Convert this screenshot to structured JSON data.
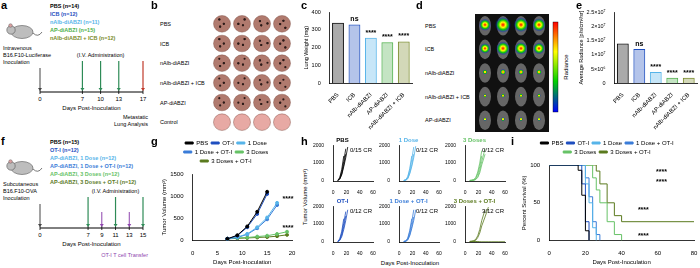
{
  "schematics": [
    {
      "panel": "a",
      "inoculation": [
        "Intravenous",
        "B16.F10-Luciferase",
        "Inoculation"
      ],
      "groups": [
        {
          "label": "PBS (n=14)",
          "color": "#000000"
        },
        {
          "label": "ICB (n=12)",
          "color": "#1f4fbf"
        },
        {
          "label": "nAlb-diABZI (n=11)",
          "color": "#56b4e9"
        },
        {
          "label": "AP-diABZI (n=15)",
          "color": "#4daf4a"
        },
        {
          "label": "nAlb-diABZI + ICB (n=12)",
          "color": "#7a8b2a"
        }
      ],
      "administration": "(I.V. Administration)",
      "days": [
        0,
        7,
        10,
        13,
        17
      ],
      "dose_days": [
        7,
        10,
        13
      ],
      "x_label": "Days Post-Inoculation",
      "endpoint": {
        "day": 17,
        "text": [
          "Metastatic",
          "Lung Analysis"
        ]
      }
    },
    {
      "panel": "f",
      "inoculation": [
        "Subcutaneous",
        "B16.F10-OVA",
        "Inoculation"
      ],
      "groups": [
        {
          "label": "PBS (n=15)",
          "color": "#000000"
        },
        {
          "label": "OT-I (n=12)",
          "color": "#1f4fbf"
        },
        {
          "label": "AP-diABZI, 1 Dose (n=12)",
          "color": "#56b4e9"
        },
        {
          "label": "AP-diABZI, 1 Dose + OT-I (n=12)",
          "color": "#3b7dd8"
        },
        {
          "label": "AP-diABZI, 3 Doses (n=12)",
          "color": "#66c266"
        },
        {
          "label": "AP-diABZI, 3 Doses + OT-I (n=12)",
          "color": "#5b7a1f"
        }
      ],
      "administration": "(I.V. Administration)",
      "days": [
        0,
        7,
        9,
        11,
        13,
        15
      ],
      "dose_days": [
        7,
        11,
        15
      ],
      "x_label": "Days Post-Inoculation",
      "transfer": {
        "days": [
          9,
          13
        ],
        "text": "OT-I T cell Transfer"
      }
    }
  ],
  "lung_photos": {
    "panel": "b",
    "rows": [
      "PBS",
      "ICB",
      "nAlb-diABZI",
      "nAlb-diABZI + ICB",
      "AP-diABZI",
      "Control"
    ]
  },
  "imaging": {
    "panel": "d",
    "rows": [
      "PBS",
      "ICB",
      "nAlb-diABZI",
      "nAlb-diABZI + ICB",
      "AP-diABZI"
    ],
    "colorbar_label": "Radiance"
  },
  "tumor_growth_panel": {
    "panel": "h",
    "x_label": "Days Post-Inoculation",
    "y_label": "Tumor Volume (mm³)"
  },
  "chart_data": [
    {
      "panel": "c",
      "type": "bar",
      "y_label": "Lung Weight (mg)",
      "categories": [
        "PBS",
        "ICB",
        "nAlb-diABZI",
        "AP-diABZI",
        "nAlb-diABZI + ICB"
      ],
      "values": [
        340,
        330,
        255,
        230,
        235
      ],
      "colors": [
        "#000000",
        "#1f4fbf",
        "#56b4e9",
        "#4daf4a",
        "#7a8b2a"
      ],
      "ylim": [
        0,
        400
      ],
      "yticks": [
        0,
        100,
        200,
        300,
        400
      ],
      "grid": false,
      "annotations": [
        {
          "category": "ICB",
          "text": "ns"
        },
        {
          "category": "nAlb-diABZI",
          "text": "****"
        },
        {
          "category": "AP-diABZI",
          "text": "****"
        },
        {
          "category": "nAlb-diABZI + ICB",
          "text": "****"
        }
      ]
    },
    {
      "panel": "e",
      "type": "bar",
      "y_label": "Average Radiance [p/s/cm²/sr]",
      "categories": [
        "PBS",
        "ICB",
        "nAlb-diABZI",
        "AP-diABZI",
        "nAlb-diABZI + ICB"
      ],
      "values": [
        14000000,
        12000000,
        4000000,
        2000000,
        2000000
      ],
      "colors": [
        "#000000",
        "#1f4fbf",
        "#56b4e9",
        "#4daf4a",
        "#7a8b2a"
      ],
      "ylim": [
        0,
        25000000
      ],
      "yticks": [
        0,
        {
          "value": 5000000,
          "label": "5×10⁶"
        },
        {
          "value": 10000000,
          "label": "1×10⁷"
        },
        {
          "value": 15000000,
          "label": "1.5×10⁷"
        },
        {
          "value": 20000000,
          "label": "2×10⁷"
        },
        {
          "value": 25000000,
          "label": "2.5×10⁷"
        }
      ],
      "grid": false,
      "annotations": [
        {
          "category": "ICB",
          "text": "ns"
        },
        {
          "category": "nAlb-diABZI",
          "text": "****"
        },
        {
          "category": "AP-diABZI",
          "text": "****"
        },
        {
          "category": "nAlb-diABZI + ICB",
          "text": "****"
        }
      ]
    },
    {
      "panel": "g",
      "type": "line",
      "x_label": "Days Post-Inoculation",
      "y_label": "Tumor Volume (mm³)",
      "x": [
        7,
        9,
        11,
        13,
        15,
        17,
        19
      ],
      "series": [
        {
          "name": "PBS",
          "color": "#000000",
          "values": [
            40,
            120,
            320,
            650,
            1100,
            null,
            null
          ]
        },
        {
          "name": "OT-I",
          "color": "#1f4fbf",
          "values": [
            40,
            110,
            300,
            600,
            1050,
            null,
            null
          ]
        },
        {
          "name": "1 Dose",
          "color": "#56b4e9",
          "values": [
            40,
            80,
            150,
            300,
            520,
            850,
            null
          ]
        },
        {
          "name": "1 Dose + OT-I",
          "color": "#3b7dd8",
          "values": [
            40,
            70,
            140,
            280,
            480,
            800,
            null
          ]
        },
        {
          "name": "3 Doses",
          "color": "#66c266",
          "values": [
            40,
            60,
            70,
            90,
            110,
            150,
            200
          ]
        },
        {
          "name": "3 Doses + OT-I",
          "color": "#5b7a1f",
          "values": [
            40,
            50,
            60,
            70,
            80,
            100,
            130
          ]
        }
      ],
      "xlim": [
        0,
        20
      ],
      "xticks": [
        0,
        5,
        10,
        15,
        20
      ],
      "ylim": [
        0,
        1500
      ],
      "yticks": [
        0,
        500,
        1000,
        1500
      ],
      "grid": false,
      "legend": "top",
      "marker": "circle",
      "annotations": [
        {
          "x": 19.2,
          "y": 1000,
          "text": "****"
        },
        {
          "x": 19.2,
          "y": 350,
          "text": "****"
        }
      ]
    },
    {
      "type": "line",
      "title": "PBS",
      "color": "#000000",
      "annotations": [
        {
          "text": "0/15 CR"
        }
      ],
      "x": [
        7,
        10,
        13,
        16,
        19,
        22,
        25,
        30,
        35,
        40,
        50,
        60
      ],
      "series": [
        {
          "values": [
            30,
            150,
            500,
            1100,
            1800,
            null,
            null,
            null,
            null,
            null,
            null,
            null
          ]
        },
        {
          "values": [
            30,
            120,
            400,
            900,
            1500,
            null,
            null,
            null,
            null,
            null,
            null,
            null
          ]
        },
        {
          "values": [
            30,
            200,
            650,
            1400,
            null,
            null,
            null,
            null,
            null,
            null,
            null,
            null
          ]
        },
        {
          "values": [
            30,
            100,
            350,
            800,
            1300,
            1900,
            null,
            null,
            null,
            null,
            null,
            null
          ]
        }
      ],
      "xlim": [
        0,
        60
      ],
      "xticks": [
        0,
        20,
        40,
        60
      ],
      "ylim": [
        0,
        2000
      ],
      "yticks": [
        0,
        1000,
        2000
      ],
      "grid": false
    },
    {
      "type": "line",
      "title": "1 Dose",
      "color": "#56b4e9",
      "annotations": [
        {
          "text": "0/12 CR"
        }
      ],
      "x": [
        7,
        10,
        13,
        16,
        19,
        22,
        25,
        30,
        35,
        40,
        50,
        60
      ],
      "series": [
        {
          "values": [
            30,
            60,
            200,
            600,
            1200,
            1900,
            null,
            null,
            null,
            null,
            null,
            null
          ]
        },
        {
          "values": [
            30,
            50,
            150,
            450,
            900,
            1500,
            null,
            null,
            null,
            null,
            null,
            null
          ]
        },
        {
          "values": [
            30,
            70,
            250,
            700,
            1400,
            null,
            null,
            null,
            null,
            null,
            null,
            null
          ]
        },
        {
          "values": [
            30,
            40,
            120,
            400,
            800,
            1300,
            1950,
            null,
            null,
            null,
            null,
            null
          ]
        }
      ],
      "xlim": [
        0,
        60
      ],
      "xticks": [
        0,
        20,
        40,
        60
      ],
      "ylim": [
        0,
        2000
      ],
      "yticks": [
        0,
        1000,
        2000
      ],
      "grid": false
    },
    {
      "type": "line",
      "title": "3 Doses",
      "color": "#66c266",
      "annotations": [
        {
          "text": "0/12 CR"
        }
      ],
      "x": [
        7,
        10,
        13,
        16,
        19,
        22,
        25,
        30,
        35,
        40,
        50,
        60
      ],
      "series": [
        {
          "values": [
            30,
            40,
            60,
            150,
            400,
            800,
            1400,
            null,
            null,
            null,
            null,
            null
          ]
        },
        {
          "values": [
            30,
            30,
            50,
            100,
            250,
            600,
            1100,
            1800,
            null,
            null,
            null,
            null
          ]
        },
        {
          "values": [
            30,
            50,
            80,
            200,
            500,
            1000,
            1700,
            null,
            null,
            null,
            null,
            null
          ]
        },
        {
          "values": [
            30,
            30,
            40,
            80,
            200,
            450,
            900,
            1500,
            null,
            null,
            null,
            null
          ]
        }
      ],
      "xlim": [
        0,
        60
      ],
      "xticks": [
        0,
        20,
        40,
        60
      ],
      "ylim": [
        0,
        2000
      ],
      "yticks": [
        0,
        1000,
        2000
      ],
      "grid": false
    },
    {
      "type": "line",
      "title": "OT-I",
      "color": "#1f4fbf",
      "annotations": [
        {
          "text": "0/12 CR"
        }
      ],
      "x": [
        7,
        10,
        13,
        16,
        19,
        22,
        25,
        30,
        35,
        40,
        50,
        60
      ],
      "series": [
        {
          "values": [
            30,
            140,
            480,
            1050,
            1700,
            null,
            null,
            null,
            null,
            null,
            null,
            null
          ]
        },
        {
          "values": [
            30,
            110,
            380,
            850,
            1450,
            null,
            null,
            null,
            null,
            null,
            null,
            null
          ]
        },
        {
          "values": [
            30,
            180,
            600,
            1300,
            null,
            null,
            null,
            null,
            null,
            null,
            null,
            null
          ]
        },
        {
          "values": [
            30,
            90,
            300,
            700,
            1200,
            1800,
            null,
            null,
            null,
            null,
            null,
            null
          ]
        }
      ],
      "xlim": [
        0,
        60
      ],
      "xticks": [
        0,
        20,
        40,
        60
      ],
      "ylim": [
        0,
        2000
      ],
      "yticks": [
        0,
        1000,
        2000
      ],
      "grid": false
    },
    {
      "type": "line",
      "title": "1 Dose + OT-I",
      "color": "#3b7dd8",
      "annotations": [
        {
          "text": "0/12 CR"
        }
      ],
      "x": [
        7,
        10,
        13,
        16,
        19,
        22,
        25,
        30,
        35,
        40,
        50,
        60
      ],
      "series": [
        {
          "values": [
            30,
            50,
            180,
            550,
            1100,
            1800,
            null,
            null,
            null,
            null,
            null,
            null
          ]
        },
        {
          "values": [
            30,
            40,
            130,
            400,
            850,
            1400,
            null,
            null,
            null,
            null,
            null,
            null
          ]
        },
        {
          "values": [
            30,
            60,
            220,
            650,
            1300,
            null,
            null,
            null,
            null,
            null,
            null,
            null
          ]
        },
        {
          "values": [
            30,
            40,
            110,
            350,
            750,
            1200,
            1800,
            null,
            null,
            null,
            null,
            null
          ]
        }
      ],
      "xlim": [
        0,
        60
      ],
      "xticks": [
        0,
        20,
        40,
        60
      ],
      "ylim": [
        0,
        2000
      ],
      "yticks": [
        0,
        1000,
        2000
      ],
      "grid": false
    },
    {
      "type": "line",
      "title": "3 Doses + OT-I",
      "color": "#5b7a1f",
      "annotations": [
        {
          "text": "3/12 CR"
        }
      ],
      "x": [
        7,
        10,
        13,
        16,
        19,
        22,
        25,
        30,
        35,
        40,
        50,
        60
      ],
      "series": [
        {
          "values": [
            30,
            30,
            30,
            20,
            10,
            0,
            0,
            0,
            0,
            0,
            0,
            0
          ]
        },
        {
          "values": [
            30,
            40,
            40,
            30,
            20,
            10,
            0,
            0,
            0,
            0,
            0,
            0
          ]
        },
        {
          "values": [
            30,
            40,
            70,
            150,
            350,
            700,
            1200,
            1800,
            null,
            null,
            null,
            null
          ]
        },
        {
          "values": [
            30,
            30,
            50,
            100,
            250,
            500,
            900,
            1400,
            1950,
            null,
            null,
            null
          ]
        }
      ],
      "xlim": [
        0,
        60
      ],
      "xticks": [
        0,
        20,
        40,
        60
      ],
      "ylim": [
        0,
        2000
      ],
      "yticks": [
        0,
        1000,
        2000
      ],
      "grid": false
    },
    {
      "panel": "i",
      "type": "line",
      "x_label": "Days Post-Inoculation",
      "y_label": "Percent Survival (%)",
      "x": [
        0,
        16,
        18,
        20,
        22,
        24,
        26,
        28,
        32,
        36,
        40,
        80
      ],
      "series": [
        {
          "name": "PBS",
          "color": "#000000",
          "values": [
            100,
            93,
            60,
            13,
            0,
            null,
            null,
            null,
            null,
            null,
            null,
            null
          ]
        },
        {
          "name": "OT-I",
          "color": "#1f4fbf",
          "values": [
            100,
            100,
            75,
            25,
            0,
            null,
            null,
            null,
            null,
            null,
            null,
            null
          ]
        },
        {
          "name": "1 Dose",
          "color": "#56b4e9",
          "values": [
            100,
            100,
            100,
            75,
            50,
            17,
            0,
            null,
            null,
            null,
            null,
            null
          ]
        },
        {
          "name": "1 Dose + OT-I",
          "color": "#3b7dd8",
          "values": [
            100,
            100,
            100,
            83,
            58,
            25,
            8,
            0,
            null,
            null,
            null,
            null
          ]
        },
        {
          "name": "3 Doses",
          "color": "#66c266",
          "values": [
            100,
            100,
            100,
            100,
            100,
            83,
            67,
            50,
            25,
            8,
            0,
            null
          ]
        },
        {
          "name": "3 Doses + OT-I",
          "color": "#5b7a1f",
          "values": [
            100,
            100,
            100,
            100,
            100,
            100,
            92,
            75,
            50,
            33,
            25,
            25
          ]
        }
      ],
      "xlim": [
        0,
        80
      ],
      "xticks": [
        0,
        20,
        40,
        60,
        80
      ],
      "ylim": [
        0,
        100
      ],
      "yticks": [
        0,
        50,
        100
      ],
      "grid": false,
      "legend": "top",
      "line_style": "step",
      "annotations": [
        {
          "x": 62,
          "y": 95,
          "text": "****"
        },
        {
          "x": 62,
          "y": 82,
          "text": "****"
        },
        {
          "x": 52,
          "y": 45,
          "text": "****"
        },
        {
          "x": 52,
          "y": 10,
          "text": "****"
        }
      ]
    }
  ]
}
